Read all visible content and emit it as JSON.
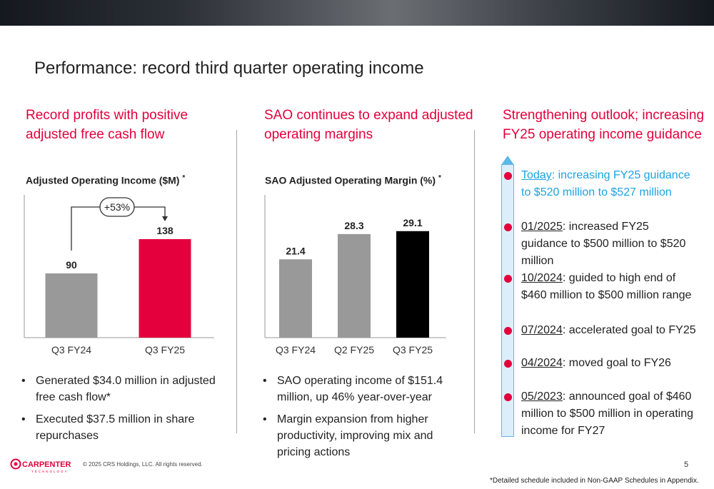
{
  "slide": {
    "title": "Performance: record third quarter operating income",
    "page_number": "5",
    "copyright": "© 2025 CRS Holdings, LLC. All rights reserved.",
    "footnote": "*Detailed schedule included in Non-GAAP Schedules in Appendix.",
    "logo": {
      "name": "CARPENTER",
      "sub": "TECHNOLOGY"
    }
  },
  "colors": {
    "accent": "#e3003c",
    "gray_bar": "#999999",
    "black_bar": "#000000",
    "timeline_blue": "#1aa3e0"
  },
  "left": {
    "heading_line1": "Record profits with positive",
    "heading_line2": "adjusted free cash flow",
    "chart_label": "Adjusted Operating Income ($M)",
    "chart_label_mark": "*",
    "growth_label": "+53%",
    "bullets": [
      "Generated $34.0 million in adjusted free cash flow*",
      "Executed $37.5 million in share repurchases"
    ]
  },
  "middle": {
    "heading_line1": "SAO continues to expand adjusted",
    "heading_line2": "operating margins",
    "chart_label": "SAO Adjusted Operating Margin (%)",
    "chart_label_mark": "*",
    "bullets": [
      "SAO operating income of $151.4 million, up 46% year-over-year",
      "Margin expansion from higher productivity, improving mix and pricing actions"
    ]
  },
  "right": {
    "heading_line1": "Strengthening outlook; increasing",
    "heading_line2": "FY25 operating income guidance",
    "timeline": [
      {
        "date": "Today",
        "text": ": increasing FY25 guidance to $520 million to $527 million"
      },
      {
        "date": "01/2025",
        "text": ": increased FY25 guidance to $500 million to $520 million"
      },
      {
        "date": "10/2024",
        "text": ": guided to high end of $460 million to $500 million range"
      },
      {
        "date": "07/2024",
        "text": ": accelerated goal to FY25"
      },
      {
        "date": "04/2024",
        "text": ": moved goal to FY26"
      },
      {
        "date": "05/2023",
        "text": ": announced goal of $460 million to $500 million in operating income for FY27"
      }
    ]
  },
  "chart_data": [
    {
      "type": "bar",
      "categories": [
        "Q3 FY24",
        "Q3 FY25"
      ],
      "values": [
        90,
        138
      ],
      "ylim": [
        0,
        200
      ],
      "colors": [
        "#999999",
        "#e3003c"
      ],
      "title": "Adjusted Operating Income ($M)",
      "annotation": "+53%"
    },
    {
      "type": "bar",
      "categories": [
        "Q3 FY24",
        "Q2 FY25",
        "Q3 FY25"
      ],
      "values": [
        21.4,
        28.3,
        29.1
      ],
      "ylim": [
        0,
        39
      ],
      "colors": [
        "#999999",
        "#999999",
        "#000000"
      ],
      "title": "SAO Adjusted Operating Margin (%)"
    }
  ]
}
